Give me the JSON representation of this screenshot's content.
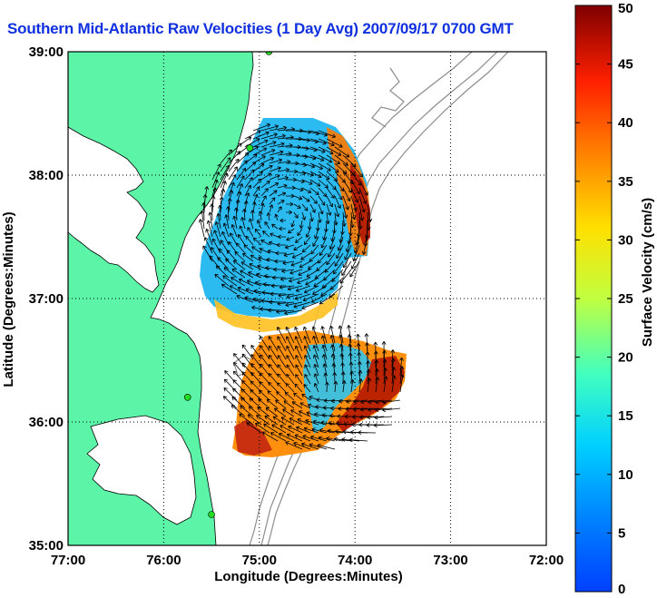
{
  "title": "Southern Mid-Atlantic Raw Velocities (1 Day Avg) 2007/09/17 0700 GMT",
  "chart_data": {
    "type": "map",
    "xlabel": "Longitude (Degrees:Minutes)",
    "ylabel": "Latitude (Degrees:Minutes)",
    "xlim": [
      -77,
      -72
    ],
    "ylim": [
      35,
      39
    ],
    "x_ticks": [
      {
        "value": -77,
        "label": "77:00"
      },
      {
        "value": -76,
        "label": "76:00"
      },
      {
        "value": -75,
        "label": "75:00"
      },
      {
        "value": -74,
        "label": "74:00"
      },
      {
        "value": -73,
        "label": "73:00"
      },
      {
        "value": -72,
        "label": "72:00"
      }
    ],
    "y_ticks": [
      {
        "value": 35,
        "label": "35:00"
      },
      {
        "value": 36,
        "label": "36:00"
      },
      {
        "value": 37,
        "label": "37:00"
      },
      {
        "value": 38,
        "label": "38:00"
      },
      {
        "value": 39,
        "label": "39:00"
      }
    ],
    "grid": true,
    "colorbar": {
      "label": "Surface Velocity (cm/s)",
      "min": 0,
      "max": 50,
      "ticks": [
        0,
        5,
        10,
        15,
        20,
        25,
        30,
        35,
        40,
        45,
        50
      ],
      "colormap": "jet"
    },
    "colors": {
      "land": "#5cf5a8",
      "coastline": "#000000",
      "bathymetry": "#8c8c8c",
      "station": "#22dd22"
    },
    "stations": [
      {
        "lon": -74.9,
        "lat": 39.0
      },
      {
        "lon": -75.1,
        "lat": 38.22
      },
      {
        "lon": -75.75,
        "lat": 36.2
      },
      {
        "lon": -75.5,
        "lat": 35.25
      }
    ],
    "regions": [
      {
        "name": "north",
        "speed_range_cm_s": [
          5,
          50
        ]
      },
      {
        "name": "south",
        "speed_range_cm_s": [
          8,
          50
        ]
      }
    ]
  }
}
